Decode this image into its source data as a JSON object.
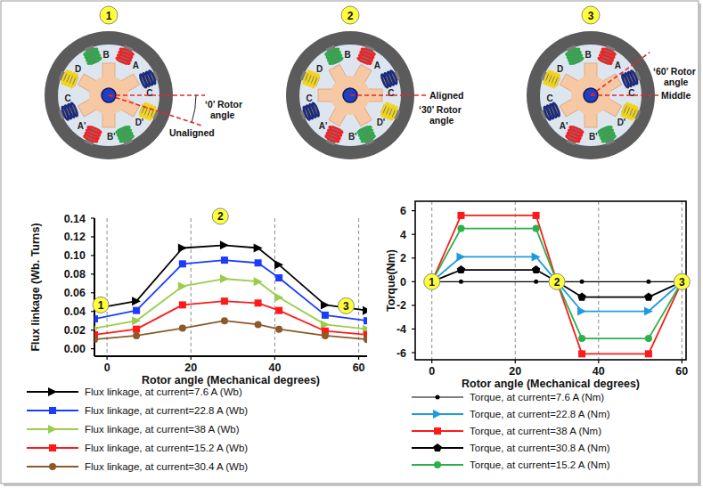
{
  "diagrams": [
    {
      "number": "1",
      "rotor_angle": 0,
      "labels": [
        "‘0’ Rotor",
        "angle",
        "Unaligned"
      ]
    },
    {
      "number": "2",
      "rotor_angle": 30,
      "labels": [
        "Aligned",
        "‘30’ Rotor",
        "angle"
      ]
    },
    {
      "number": "3",
      "rotor_angle": 60,
      "labels": [
        "‘60’ Rotor",
        "angle",
        "Middle"
      ]
    }
  ],
  "coils": [
    {
      "label": "A",
      "color": "#e8262a"
    },
    {
      "label": "B",
      "color": "#2ea84a"
    },
    {
      "label": "D",
      "color": "#f2d31b"
    },
    {
      "label": "C",
      "color": "#1c2a7a"
    },
    {
      "label": "A'",
      "color": "#e8262a"
    },
    {
      "label": "B'",
      "color": "#2ea84a"
    },
    {
      "label": "D'",
      "color": "#f2d31b"
    },
    {
      "label": "C",
      "color": "#1c2a7a"
    }
  ],
  "chart_data": [
    {
      "type": "line",
      "x_label": "Rotor angle  (Mechanical degrees)",
      "y_label": "Flux linkage (Wb. Turns)",
      "xlim": [
        -3,
        62
      ],
      "xticks": [
        0,
        20,
        40,
        60
      ],
      "ylim": [
        -0.008,
        0.14
      ],
      "yticks": [
        {
          "value": 0,
          "label": "0.00"
        },
        0.02,
        0.04,
        0.06,
        0.08,
        {
          "value": 0.1,
          "label": "0.10"
        },
        0.12,
        0.14
      ],
      "grid": "x",
      "legend": "bottom",
      "x": [
        -3,
        7,
        18,
        28,
        36,
        41,
        52,
        62
      ],
      "series": [
        {
          "name": "Flux linkage, at current=7.6 A (Wb)",
          "color": "#000000",
          "marker": "triangle",
          "values": [
            0.043,
            0.051,
            0.108,
            0.111,
            0.108,
            0.09,
            0.047,
            0.041
          ]
        },
        {
          "name": "Flux linkage, at current=22.8 A (Wb)",
          "color": "#1a3cff",
          "marker": "square",
          "values": [
            0.032,
            0.041,
            0.091,
            0.095,
            0.092,
            0.076,
            0.036,
            0.03
          ]
        },
        {
          "name": "Flux linkage, at current=38 A (Wb)",
          "color": "#9acd4c",
          "marker": "triangle",
          "values": [
            0.022,
            0.03,
            0.067,
            0.075,
            0.072,
            0.055,
            0.026,
            0.021
          ]
        },
        {
          "name": "Flux linkage, at current=15.2 A (Wb)",
          "color": "#ff1a1a",
          "marker": "square",
          "values": [
            0.015,
            0.021,
            0.047,
            0.051,
            0.049,
            0.041,
            0.019,
            0.015
          ]
        },
        {
          "name": "Flux linkage, at current=30.4 A (Wb)",
          "color": "#8b5a2b",
          "marker": "circle",
          "values": [
            0.01,
            0.014,
            0.022,
            0.03,
            0.026,
            0.021,
            0.014,
            0.01
          ]
        }
      ],
      "annotations": [
        {
          "text": "1",
          "x": -1.5,
          "y": 0.047
        },
        {
          "text": "2",
          "x": 27,
          "y": 0.142
        },
        {
          "text": "3",
          "x": 57,
          "y": 0.046
        }
      ]
    },
    {
      "type": "line",
      "x_label": "Rotor angle  (Mechanical degrees)",
      "y_label": "Torque(Nm)",
      "xlim": [
        -4,
        61
      ],
      "xticks": [
        0,
        20,
        40,
        60
      ],
      "ylim": [
        -6.6,
        6.8
      ],
      "yticks": [
        -6,
        -4,
        -2,
        0,
        2,
        4,
        6
      ],
      "grid": "x",
      "legend": "bottom",
      "x": [
        0,
        7,
        25,
        30,
        36,
        52,
        60
      ],
      "series": [
        {
          "name": "Torque, at current=7.6 A (Nm)",
          "color": "#000000",
          "marker": "dot",
          "values": [
            0,
            0,
            0,
            0,
            0,
            0,
            0
          ]
        },
        {
          "name": "Torque, at current=22.8 A (Nm)",
          "color": "#1e9be0",
          "marker": "triangle",
          "values": [
            0,
            2.1,
            2.1,
            0,
            -2.5,
            -2.5,
            0
          ]
        },
        {
          "name": "Torque, at current=38 A (Nm)",
          "color": "#ff1a1a",
          "marker": "square",
          "values": [
            0,
            5.6,
            5.6,
            0,
            -6.1,
            -6.1,
            0
          ]
        },
        {
          "name": "Torque, at current=30.8 A (Nm)",
          "color": "#000000",
          "marker": "pentagon",
          "values": [
            0,
            1.0,
            1.0,
            0,
            -1.3,
            -1.3,
            0
          ]
        },
        {
          "name": "Torque, at current=15.2 A (Nm)",
          "color": "#2bb04a",
          "marker": "circle",
          "values": [
            0,
            4.5,
            4.5,
            0,
            -4.8,
            -4.8,
            0
          ]
        }
      ],
      "annotations": [
        {
          "text": "1",
          "x": 0,
          "y": 0
        },
        {
          "text": "2",
          "x": 30,
          "y": 0
        },
        {
          "text": "3",
          "x": 60,
          "y": 0
        }
      ]
    }
  ]
}
